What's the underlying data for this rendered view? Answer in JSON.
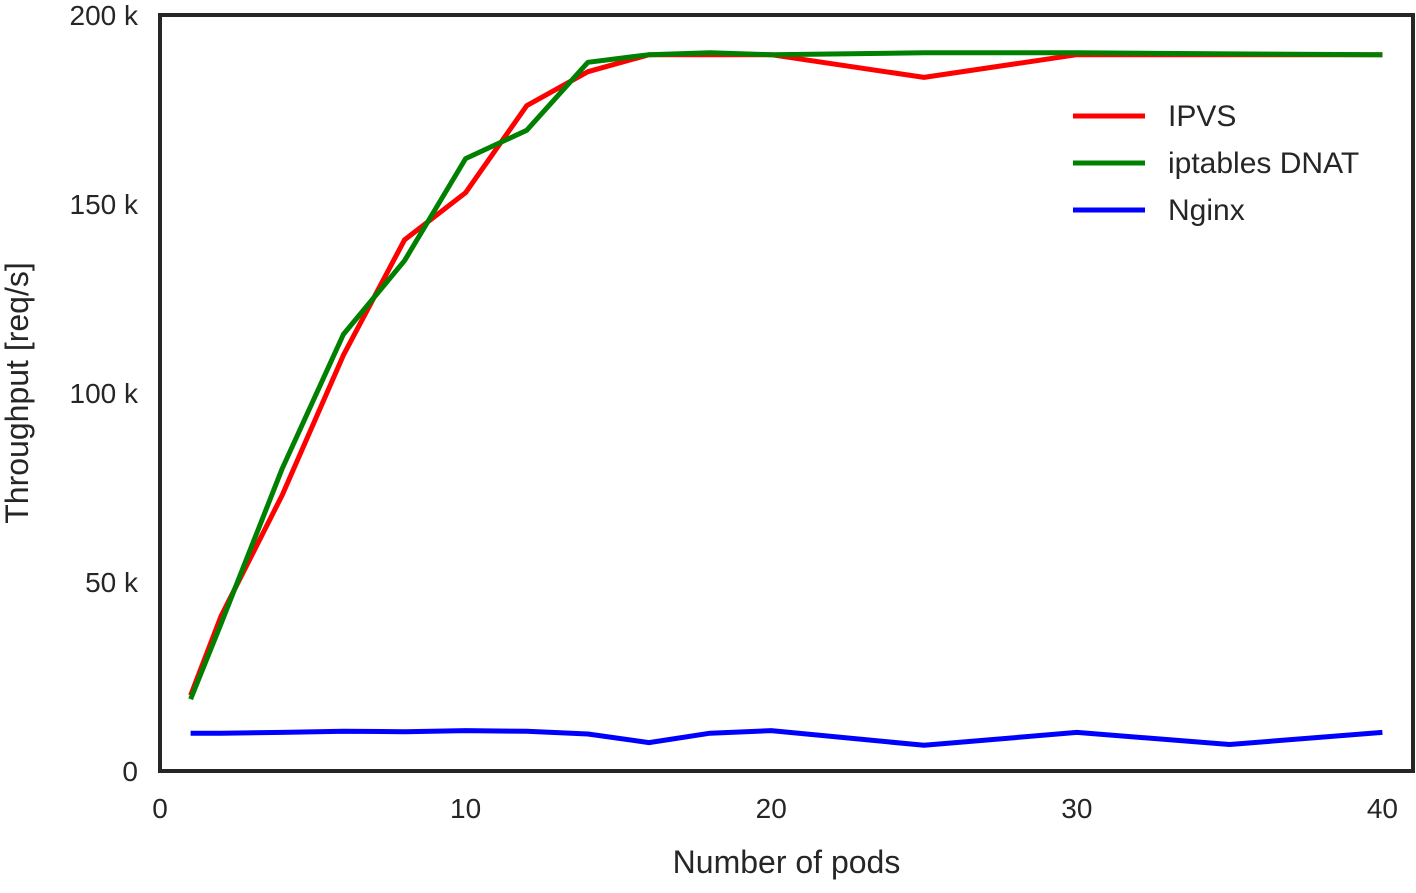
{
  "chart_data": {
    "type": "line",
    "title": "",
    "xlabel": "Number of pods",
    "ylabel": "Throughput [req/s]",
    "xlim": [
      0,
      41
    ],
    "ylim": [
      0,
      200000
    ],
    "x_ticks": [
      0,
      10,
      20,
      30,
      40
    ],
    "x_tick_labels": [
      "0",
      "10",
      "20",
      "30",
      "40"
    ],
    "y_ticks": [
      0,
      50000,
      100000,
      150000,
      200000
    ],
    "y_tick_labels": [
      "0",
      "50 k",
      "100 k",
      "150 k",
      "200 k"
    ],
    "grid": false,
    "legend_position": "upper-right",
    "series": [
      {
        "name": "IPVS",
        "color": "#ff0000",
        "x": [
          1,
          2,
          4,
          6,
          8,
          10,
          12,
          14,
          16,
          18,
          20,
          25,
          30,
          35,
          40
        ],
        "y": [
          20000,
          41000,
          73000,
          110000,
          140500,
          153000,
          176000,
          185000,
          189500,
          189500,
          189500,
          183500,
          189500,
          189500,
          189500
        ]
      },
      {
        "name": "iptables DNAT",
        "color": "#008000",
        "x": [
          1,
          2,
          4,
          6,
          8,
          10,
          12,
          14,
          16,
          18,
          20,
          25,
          30,
          35,
          40
        ],
        "y": [
          19000,
          39000,
          80000,
          115500,
          135000,
          162000,
          169500,
          187500,
          189500,
          190000,
          189500,
          190000,
          190000,
          189700,
          189500
        ]
      },
      {
        "name": "Nginx",
        "color": "#0000ff",
        "x": [
          1,
          2,
          4,
          6,
          8,
          10,
          12,
          14,
          16,
          18,
          20,
          25,
          30,
          35,
          40
        ],
        "y": [
          10000,
          10000,
          10200,
          10500,
          10400,
          10700,
          10500,
          9800,
          7500,
          10000,
          10700,
          6800,
          10200,
          7000,
          10200
        ]
      }
    ]
  }
}
